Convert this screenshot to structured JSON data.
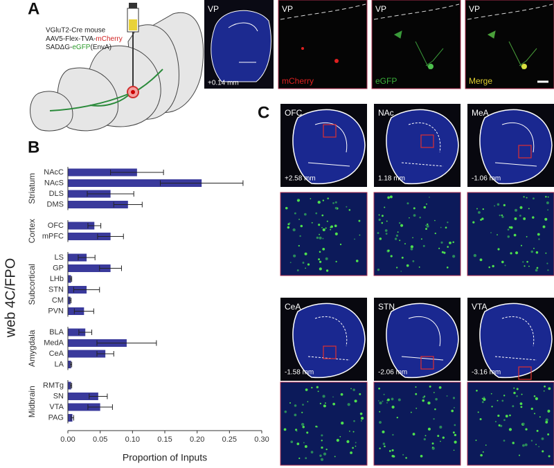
{
  "panel_a": {
    "label": "A",
    "construct": {
      "line1": "VGluT2-Cre mouse",
      "line2_prefix": "AAV5-Flex-TVA-",
      "line2_marker": "mCherry",
      "line3_prefix": "SADΔG-",
      "line3_marker": "eGFP",
      "line3_suffix": "(EnvA)"
    },
    "images": [
      {
        "region": "VP",
        "caption": "+0.14 mm"
      },
      {
        "region": "VP",
        "caption": "mCherry"
      },
      {
        "region": "VP",
        "caption": "eGFP"
      },
      {
        "region": "VP",
        "caption": "Merge"
      }
    ]
  },
  "panel_b": {
    "label": "B"
  },
  "panel_c": {
    "label": "C",
    "sections": [
      {
        "region": "OFC",
        "coordinate": "+2.58 mm"
      },
      {
        "region": "NAc",
        "coordinate": "1.18 mm"
      },
      {
        "region": "MeA",
        "coordinate": "-1.06 mm"
      },
      {
        "region": "CeA",
        "coordinate": "-1.58 mm"
      },
      {
        "region": "STN",
        "coordinate": "-2.06 mm"
      },
      {
        "region": "VTA",
        "coordinate": "-3.16 mm"
      }
    ]
  },
  "chart_data": {
    "type": "bar",
    "orientation": "horizontal",
    "color": "#3a3a9c",
    "error_color": "#222222",
    "x_label": "Proportion of Inputs",
    "y_label": "web 4C/FPO",
    "xlim": [
      0,
      0.3
    ],
    "xticks": [
      {
        "value": 0,
        "label": "0.00"
      },
      0.05,
      {
        "value": 0.1,
        "label": "0.10"
      },
      0.15,
      {
        "value": 0.2,
        "label": "0.20"
      },
      0.25,
      {
        "value": 0.3,
        "label": "0.30"
      }
    ],
    "groups": [
      {
        "name": "Striatum",
        "categories": [
          "NAcC",
          "NAcS",
          "DLS",
          "DMS"
        ],
        "values": [
          0.107,
          0.207,
          0.066,
          0.093
        ],
        "errors": [
          0.041,
          0.064,
          0.036,
          0.022
        ]
      },
      {
        "name": "Cortex",
        "categories": [
          "OFC",
          "mPFC"
        ],
        "values": [
          0.041,
          0.066
        ],
        "errors": [
          0.01,
          0.02
        ]
      },
      {
        "name": "Subcortical",
        "categories": [
          "LS",
          "GP",
          "LHb",
          "STN",
          "CM",
          "PVN"
        ],
        "values": [
          0.029,
          0.066,
          0.005,
          0.029,
          0.004,
          0.025
        ],
        "errors": [
          0.013,
          0.017,
          0.001,
          0.02,
          0.001,
          0.015
        ]
      },
      {
        "name": "Amygdala",
        "categories": [
          "BLA",
          "MedA",
          "CeA",
          "LA"
        ],
        "values": [
          0.027,
          0.091,
          0.058,
          0.005
        ],
        "errors": [
          0.01,
          0.046,
          0.013,
          0.001
        ]
      },
      {
        "name": "Midbrain",
        "categories": [
          "RMTg",
          "SN",
          "VTA",
          "PAG"
        ],
        "values": [
          0.005,
          0.047,
          0.05,
          0.007
        ],
        "errors": [
          0.001,
          0.014,
          0.019,
          0.002
        ]
      }
    ]
  }
}
